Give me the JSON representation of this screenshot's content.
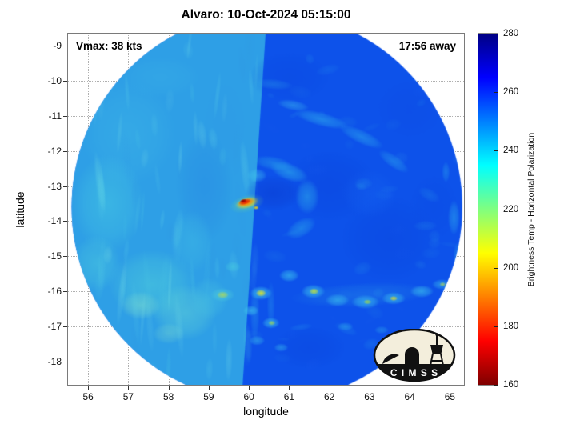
{
  "title": "Alvaro: 10-Oct-2024 05:15:00",
  "annotations": {
    "vmax": "Vmax: 38 kts",
    "time_away": "17:56 away"
  },
  "storm": {
    "name": "Alvaro",
    "datetime": "10-Oct-2024 05:15:00",
    "vmax_kts": 38,
    "time_away": "17:56"
  },
  "logo": {
    "text": "C I M S S"
  },
  "chart_data": {
    "type": "heatmap",
    "title": "Alvaro: 10-Oct-2024 05:15:00",
    "xlabel": "longitude",
    "ylabel": "latitude",
    "xlim": [
      55.5,
      65.35
    ],
    "ylim": [
      -18.66,
      -8.66
    ],
    "x_ticks": [
      56,
      57,
      58,
      59,
      60,
      61,
      62,
      63,
      64,
      65
    ],
    "y_ticks": [
      -9,
      -10,
      -11,
      -12,
      -13,
      -14,
      -15,
      -16,
      -17,
      -18
    ],
    "grid": true,
    "colorbar": {
      "label": "Brightness Temp - Horizontal Polarization",
      "min": 160,
      "max": 280,
      "ticks": [
        280,
        260,
        240,
        220,
        200,
        180,
        160
      ],
      "colormap": "jet (reversed: 280 K dark blue at top, 160 K dark red at bottom)",
      "stops": [
        {
          "pos": 0.0,
          "color": "#000084"
        },
        {
          "pos": 0.125,
          "color": "#0000ff"
        },
        {
          "pos": 0.375,
          "color": "#00ffff"
        },
        {
          "pos": 0.625,
          "color": "#ffff00"
        },
        {
          "pos": 0.875,
          "color": "#ff0000"
        },
        {
          "pos": 1.0,
          "color": "#7f0000"
        }
      ]
    },
    "swath": {
      "center_lon": 60.45,
      "center_lat": -13.6,
      "radius_deg": 4.86,
      "seam_top_lon": 60.52,
      "seam_bottom_lon": 59.74,
      "base_colors": {
        "left": "#2e9fe6",
        "right": "#0d52ea"
      }
    },
    "texture_features": [
      {
        "x": 57.0,
        "y": -11.5,
        "rx": 1.2,
        "ry": 1.5,
        "c": "#3fb9e8",
        "a": 0.4
      },
      {
        "x": 56.5,
        "y": -13.5,
        "rx": 0.9,
        "ry": 1.4,
        "c": "#49cfe2",
        "a": 0.45
      },
      {
        "x": 57.6,
        "y": -15.8,
        "rx": 1.1,
        "ry": 1.0,
        "c": "#55d8d8",
        "a": 0.45
      },
      {
        "x": 58.4,
        "y": -16.6,
        "rx": 0.8,
        "ry": 0.8,
        "c": "#6fe2d2",
        "a": 0.4
      },
      {
        "x": 58.9,
        "y": -13.0,
        "rx": 0.7,
        "ry": 1.6,
        "c": "#2688e4",
        "a": 0.45
      },
      {
        "x": 59.4,
        "y": -11.3,
        "rx": 0.5,
        "ry": 1.2,
        "c": "#2e9ae6",
        "a": 0.4
      },
      {
        "x": 57.8,
        "y": -9.9,
        "rx": 1.0,
        "ry": 0.6,
        "c": "#39b0e8",
        "a": 0.4
      },
      {
        "x": 56.2,
        "y": -15.2,
        "rx": 0.6,
        "ry": 0.8,
        "c": "#52d4dc",
        "a": 0.4
      },
      {
        "x": 58.6,
        "y": -14.6,
        "rx": 0.5,
        "ry": 0.9,
        "c": "#45c4e4",
        "a": 0.35
      },
      {
        "x": 57.3,
        "y": -16.4,
        "rx": 0.5,
        "ry": 0.4,
        "c": "#8fe9c9",
        "a": 0.4
      },
      {
        "x": 58.0,
        "y": -17.2,
        "rx": 0.4,
        "ry": 0.3,
        "c": "#8fe9c9",
        "a": 0.3
      },
      {
        "x": 59.0,
        "y": -16.2,
        "rx": 0.5,
        "ry": 0.6,
        "c": "#4cc8e0",
        "a": 0.4
      },
      {
        "x": 62.0,
        "y": -13.0,
        "rx": 1.2,
        "ry": 1.0,
        "c": "#0b43dd",
        "a": 0.4
      },
      {
        "x": 63.5,
        "y": -14.5,
        "rx": 1.2,
        "ry": 1.2,
        "c": "#0b43dd",
        "a": 0.35
      },
      {
        "x": 61.0,
        "y": -9.9,
        "rx": 1.0,
        "ry": 0.7,
        "c": "#0b46e0",
        "a": 0.35
      },
      {
        "x": 64.0,
        "y": -10.8,
        "rx": 0.8,
        "ry": 0.8,
        "c": "#0d4ae4",
        "a": 0.3
      },
      {
        "x": 61.5,
        "y": -17.6,
        "rx": 0.9,
        "ry": 0.6,
        "c": "#0b43dd",
        "a": 0.35
      },
      {
        "x": 63.0,
        "y": -13.2,
        "rx": 0.7,
        "ry": 0.7,
        "c": "#1766f2",
        "a": 0.35
      },
      {
        "x": 64.6,
        "y": -13.6,
        "rx": 0.6,
        "ry": 0.9,
        "c": "#0c48e2",
        "a": 0.3
      }
    ],
    "noise": [
      {
        "seed": 7,
        "count": 90,
        "lon": [
          55.6,
          60.2
        ],
        "lat": [
          -18.4,
          -8.9
        ],
        "rx": [
          0.04,
          0.14
        ],
        "ry": [
          0.25,
          1.0
        ],
        "rot": [
          -8,
          8
        ],
        "colors": [
          "#66dce8",
          "#84eae6",
          "#2e96e4",
          "#4cc8e4"
        ],
        "alpha": [
          0.1,
          0.26
        ]
      },
      {
        "seed": 13,
        "count": 70,
        "lon": [
          60.1,
          65.4
        ],
        "lat": [
          -18.2,
          -9.0
        ],
        "rx": [
          0.1,
          0.32
        ],
        "ry": [
          0.05,
          0.2
        ],
        "rot": [
          -30,
          30
        ],
        "colors": [
          "#1a5cf0",
          "#2f9fe8",
          "#35c0ea"
        ],
        "alpha": [
          0.08,
          0.18
        ]
      }
    ],
    "detail_features": [
      {
        "x": 61.1,
        "y": -10.7,
        "rx": 0.4,
        "ry": 0.15,
        "rot": 10,
        "c": "#46ccee",
        "a": 0.4
      },
      {
        "x": 61.8,
        "y": -11.1,
        "rx": 0.7,
        "ry": 0.2,
        "rot": 15,
        "c": "#38c4ee",
        "a": 0.45
      },
      {
        "x": 62.8,
        "y": -11.6,
        "rx": 0.6,
        "ry": 0.2,
        "rot": 25,
        "c": "#38c4ee",
        "a": 0.4
      },
      {
        "x": 63.6,
        "y": -12.3,
        "rx": 0.45,
        "ry": 0.18,
        "rot": 35,
        "c": "#38c4ee",
        "a": 0.35
      },
      {
        "x": 60.6,
        "y": -10.1,
        "rx": 0.5,
        "ry": 0.15,
        "rot": 5,
        "c": "#2fa8e8",
        "a": 0.3
      },
      {
        "x": 60.6,
        "y": -12.35,
        "rx": 0.5,
        "ry": 0.2,
        "rot": 10,
        "c": "#2fb4ea",
        "a": 0.4
      },
      {
        "x": 61.0,
        "y": -12.6,
        "rx": 0.5,
        "ry": 0.25,
        "rot": 20,
        "c": "#35c2ec",
        "a": 0.5
      },
      {
        "x": 61.45,
        "y": -13.3,
        "rx": 0.3,
        "ry": 0.5,
        "rot": 0,
        "c": "#35c2ec",
        "a": 0.45
      },
      {
        "x": 61.3,
        "y": -14.2,
        "rx": 0.4,
        "ry": 0.25,
        "rot": -30,
        "c": "#35c2ec",
        "a": 0.4
      },
      {
        "x": 60.2,
        "y": -12.7,
        "rx": 0.25,
        "ry": 0.2,
        "rot": 0,
        "c": "#49d2ee",
        "a": 0.45
      },
      {
        "x": 65.1,
        "y": -13.9,
        "rx": 0.15,
        "ry": 0.5,
        "c": "#38c4ee",
        "a": 0.4
      },
      {
        "x": 65.2,
        "y": -15.0,
        "rx": 0.12,
        "ry": 0.4,
        "c": "#38c4ee",
        "a": 0.35
      },
      {
        "x": 64.9,
        "y": -12.6,
        "rx": 0.1,
        "ry": 0.3,
        "c": "#38c4ee",
        "a": 0.3
      },
      {
        "x": 62.8,
        "y": -16.1,
        "rx": 1.8,
        "ry": 0.35,
        "rot": -3,
        "c": "#2f9fe8",
        "a": 0.3
      },
      {
        "x": 61.0,
        "y": -15.55,
        "rx": 0.25,
        "ry": 0.18,
        "c": "#40ccee",
        "a": 0.6
      },
      {
        "x": 61.6,
        "y": -16.0,
        "rx": 0.3,
        "ry": 0.2,
        "c": "#40ccee",
        "a": 0.65
      },
      {
        "x": 61.62,
        "y": -16.0,
        "rx": 0.12,
        "ry": 0.09,
        "c": "#cfe428",
        "a": 0.8
      },
      {
        "x": 62.2,
        "y": -16.25,
        "rx": 0.3,
        "ry": 0.18,
        "c": "#40ccee",
        "a": 0.55
      },
      {
        "x": 62.9,
        "y": -16.3,
        "rx": 0.35,
        "ry": 0.2,
        "c": "#40ccee",
        "a": 0.6
      },
      {
        "x": 62.95,
        "y": -16.3,
        "rx": 0.1,
        "ry": 0.07,
        "c": "#b8e028",
        "a": 0.7
      },
      {
        "x": 63.6,
        "y": -16.2,
        "rx": 0.3,
        "ry": 0.18,
        "c": "#40ccee",
        "a": 0.6
      },
      {
        "x": 63.6,
        "y": -16.2,
        "rx": 0.1,
        "ry": 0.07,
        "c": "#ffe000",
        "a": 0.7
      },
      {
        "x": 64.3,
        "y": -16.0,
        "rx": 0.3,
        "ry": 0.18,
        "c": "#40ccee",
        "a": 0.55
      },
      {
        "x": 64.8,
        "y": -15.8,
        "rx": 0.25,
        "ry": 0.15,
        "c": "#40ccee",
        "a": 0.5
      },
      {
        "x": 64.82,
        "y": -15.8,
        "rx": 0.08,
        "ry": 0.06,
        "c": "#d8e828",
        "a": 0.6
      },
      {
        "x": 62.4,
        "y": -17.0,
        "rx": 0.2,
        "ry": 0.12,
        "c": "#38c0ec",
        "a": 0.4
      },
      {
        "x": 63.3,
        "y": -17.1,
        "rx": 0.18,
        "ry": 0.11,
        "c": "#38c0ec",
        "a": 0.35
      },
      {
        "x": 60.15,
        "y": -16.6,
        "rx": 0.12,
        "ry": 0.8,
        "c": "#2fa8ea",
        "a": 0.35
      },
      {
        "x": 60.55,
        "y": -16.4,
        "rx": 0.1,
        "ry": 0.7,
        "c": "#2fa8ea",
        "a": 0.3
      },
      {
        "x": 60.3,
        "y": -16.05,
        "rx": 0.28,
        "ry": 0.2,
        "c": "#44d0ee",
        "a": 0.7
      },
      {
        "x": 60.3,
        "y": -16.05,
        "rx": 0.13,
        "ry": 0.1,
        "c": "#e4e420",
        "a": 0.85
      },
      {
        "x": 60.05,
        "y": -16.55,
        "rx": 0.2,
        "ry": 0.15,
        "c": "#44d0ee",
        "a": 0.6
      },
      {
        "x": 60.55,
        "y": -16.9,
        "rx": 0.22,
        "ry": 0.16,
        "c": "#44d0ee",
        "a": 0.6
      },
      {
        "x": 60.57,
        "y": -16.9,
        "rx": 0.09,
        "ry": 0.07,
        "c": "#bfe028",
        "a": 0.6
      },
      {
        "x": 60.2,
        "y": -17.4,
        "rx": 0.2,
        "ry": 0.14,
        "c": "#3cc4ec",
        "a": 0.5
      },
      {
        "x": 60.8,
        "y": -17.6,
        "rx": 0.18,
        "ry": 0.12,
        "c": "#3cc4ec",
        "a": 0.45
      },
      {
        "x": 59.35,
        "y": -16.1,
        "rx": 0.3,
        "ry": 0.2,
        "c": "#55d8d8",
        "a": 0.5
      },
      {
        "x": 59.35,
        "y": -16.1,
        "rx": 0.15,
        "ry": 0.1,
        "c": "#cfe030",
        "a": 0.6
      },
      {
        "x": 59.6,
        "y": -15.3,
        "rx": 0.2,
        "ry": 0.15,
        "c": "#49d0e0",
        "a": 0.5
      },
      {
        "x": 60.6,
        "y": -13.2,
        "rx": 0.7,
        "ry": 0.5,
        "c": "#0a3bd0",
        "a": 0.5
      },
      {
        "x": 59.95,
        "y": -13.5,
        "rx": 0.45,
        "ry": 0.25,
        "rot": -15,
        "c": "#7fe87f",
        "a": 0.35
      },
      {
        "x": 59.95,
        "y": -13.48,
        "rx": 0.3,
        "ry": 0.16,
        "rot": -15,
        "c": "#ffd800",
        "a": 0.85
      },
      {
        "x": 59.93,
        "y": -13.47,
        "rx": 0.22,
        "ry": 0.11,
        "rot": -15,
        "c": "#ff7800",
        "a": 0.95
      },
      {
        "x": 59.9,
        "y": -13.45,
        "rx": 0.16,
        "ry": 0.08,
        "rot": -15,
        "c": "#e11400",
        "a": 1
      },
      {
        "x": 59.86,
        "y": -13.42,
        "rx": 0.09,
        "ry": 0.05,
        "rot": -15,
        "c": "#8f0000",
        "a": 1
      },
      {
        "x": 60.18,
        "y": -13.62,
        "rx": 0.07,
        "ry": 0.05,
        "c": "#ffe000",
        "a": 0.9
      }
    ]
  }
}
